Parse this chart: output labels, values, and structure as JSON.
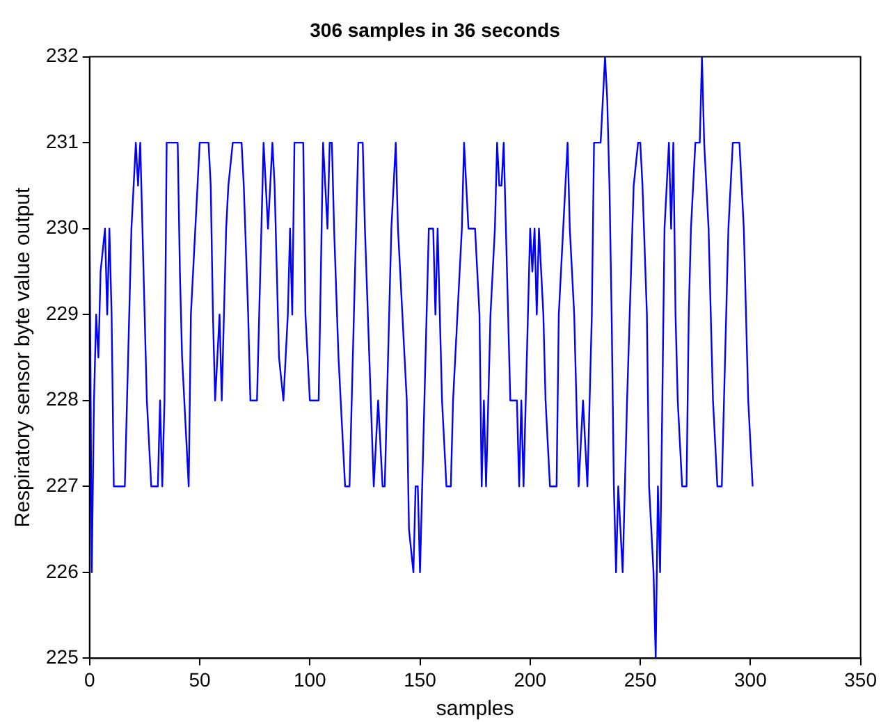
{
  "chart_data": {
    "type": "line",
    "title": "306 samples in 36 seconds",
    "xlabel": "samples",
    "ylabel": "Respiratory sensor byte value output",
    "color": "#0000ff",
    "marker": "none",
    "line_style": "solid",
    "grid": false,
    "legend": false,
    "xlim": [
      0,
      350
    ],
    "xticks": [
      0,
      50,
      100,
      150,
      200,
      250,
      300,
      350
    ],
    "ylim": [
      225,
      232
    ],
    "yticks": [
      225,
      226,
      227,
      228,
      229,
      230,
      231,
      232
    ],
    "x": [
      0,
      1,
      2,
      3,
      4,
      5,
      7,
      8,
      9,
      10,
      11,
      16,
      17,
      19,
      20,
      21,
      22,
      23,
      24,
      25,
      26,
      28,
      31,
      32,
      33,
      34,
      35,
      40,
      41,
      42,
      44,
      45,
      46,
      48,
      50,
      54,
      55,
      56,
      57,
      59,
      60,
      62,
      63,
      65,
      69,
      70,
      72,
      73,
      76,
      77,
      79,
      81,
      83,
      84,
      85,
      86,
      88,
      90,
      91,
      92,
      93,
      97,
      98,
      100,
      104,
      106,
      108,
      109,
      110,
      111,
      113,
      114,
      116,
      118,
      119,
      120,
      122,
      124,
      125,
      127,
      129,
      131,
      133,
      134,
      135,
      137,
      139,
      140,
      142,
      144,
      145,
      147,
      148,
      149,
      150,
      151,
      152,
      154,
      156,
      157,
      158,
      160,
      162,
      164,
      165,
      167,
      169,
      170,
      171,
      172,
      175,
      177,
      178,
      179,
      180,
      182,
      184,
      185,
      186,
      187,
      188,
      189,
      190,
      191,
      194,
      195,
      196,
      197,
      199,
      200,
      201,
      202,
      203,
      204,
      206,
      207,
      209,
      212,
      213,
      215,
      217,
      218,
      220,
      222,
      224,
      226,
      228,
      229,
      232,
      233,
      234,
      235,
      236,
      237,
      238,
      239,
      240,
      241,
      242,
      244,
      247,
      249,
      250,
      251,
      253,
      254,
      256,
      257,
      258,
      259,
      260,
      261,
      262,
      263,
      264,
      265,
      266,
      267,
      269,
      271,
      272,
      273,
      275,
      277,
      278,
      279,
      281,
      283,
      285,
      287,
      288,
      290,
      292,
      295,
      297,
      299,
      301
    ],
    "values": [
      230,
      226,
      228,
      229,
      228.5,
      229.5,
      230,
      229,
      230,
      229,
      227,
      227,
      228,
      230,
      230.5,
      231,
      230.5,
      231,
      230,
      229,
      228,
      227,
      227,
      228,
      227,
      228,
      231,
      231,
      229.5,
      228.5,
      227.5,
      227,
      229,
      230,
      231,
      231,
      230.5,
      229,
      228,
      229,
      228,
      230,
      230.5,
      231,
      231,
      230.5,
      229,
      228,
      228,
      229,
      231,
      230,
      231,
      230.5,
      229.5,
      228.5,
      228,
      229,
      230,
      229,
      231,
      231,
      229,
      228,
      228,
      231,
      230,
      231,
      231,
      230,
      228.5,
      228,
      227,
      227,
      228,
      229,
      231,
      231,
      230,
      228.5,
      227,
      228,
      227,
      227,
      228,
      230,
      231,
      230,
      229,
      228,
      226.5,
      226,
      227,
      227,
      226,
      227,
      228,
      230,
      230,
      229,
      230,
      228,
      227,
      227,
      228,
      229,
      230,
      231,
      230.5,
      230,
      230,
      229,
      227,
      228,
      227,
      229,
      230,
      231,
      230.5,
      230.5,
      231,
      230,
      229,
      228,
      228,
      227,
      228,
      227,
      229,
      230,
      229.5,
      230,
      229,
      230,
      229,
      228,
      227,
      227,
      229,
      230,
      231,
      230,
      229,
      227,
      228,
      227,
      229,
      231,
      231,
      231.5,
      232,
      231.5,
      230.5,
      229,
      227,
      226,
      227,
      226.5,
      226,
      228,
      230.5,
      231,
      231,
      230.5,
      229,
      227,
      226,
      225,
      227,
      226,
      228,
      230,
      230.5,
      231,
      230,
      231,
      229,
      228,
      227,
      227,
      229,
      230,
      231,
      231,
      232,
      231,
      230,
      228,
      227,
      227,
      228,
      230,
      231,
      231,
      230,
      228,
      227
    ]
  }
}
